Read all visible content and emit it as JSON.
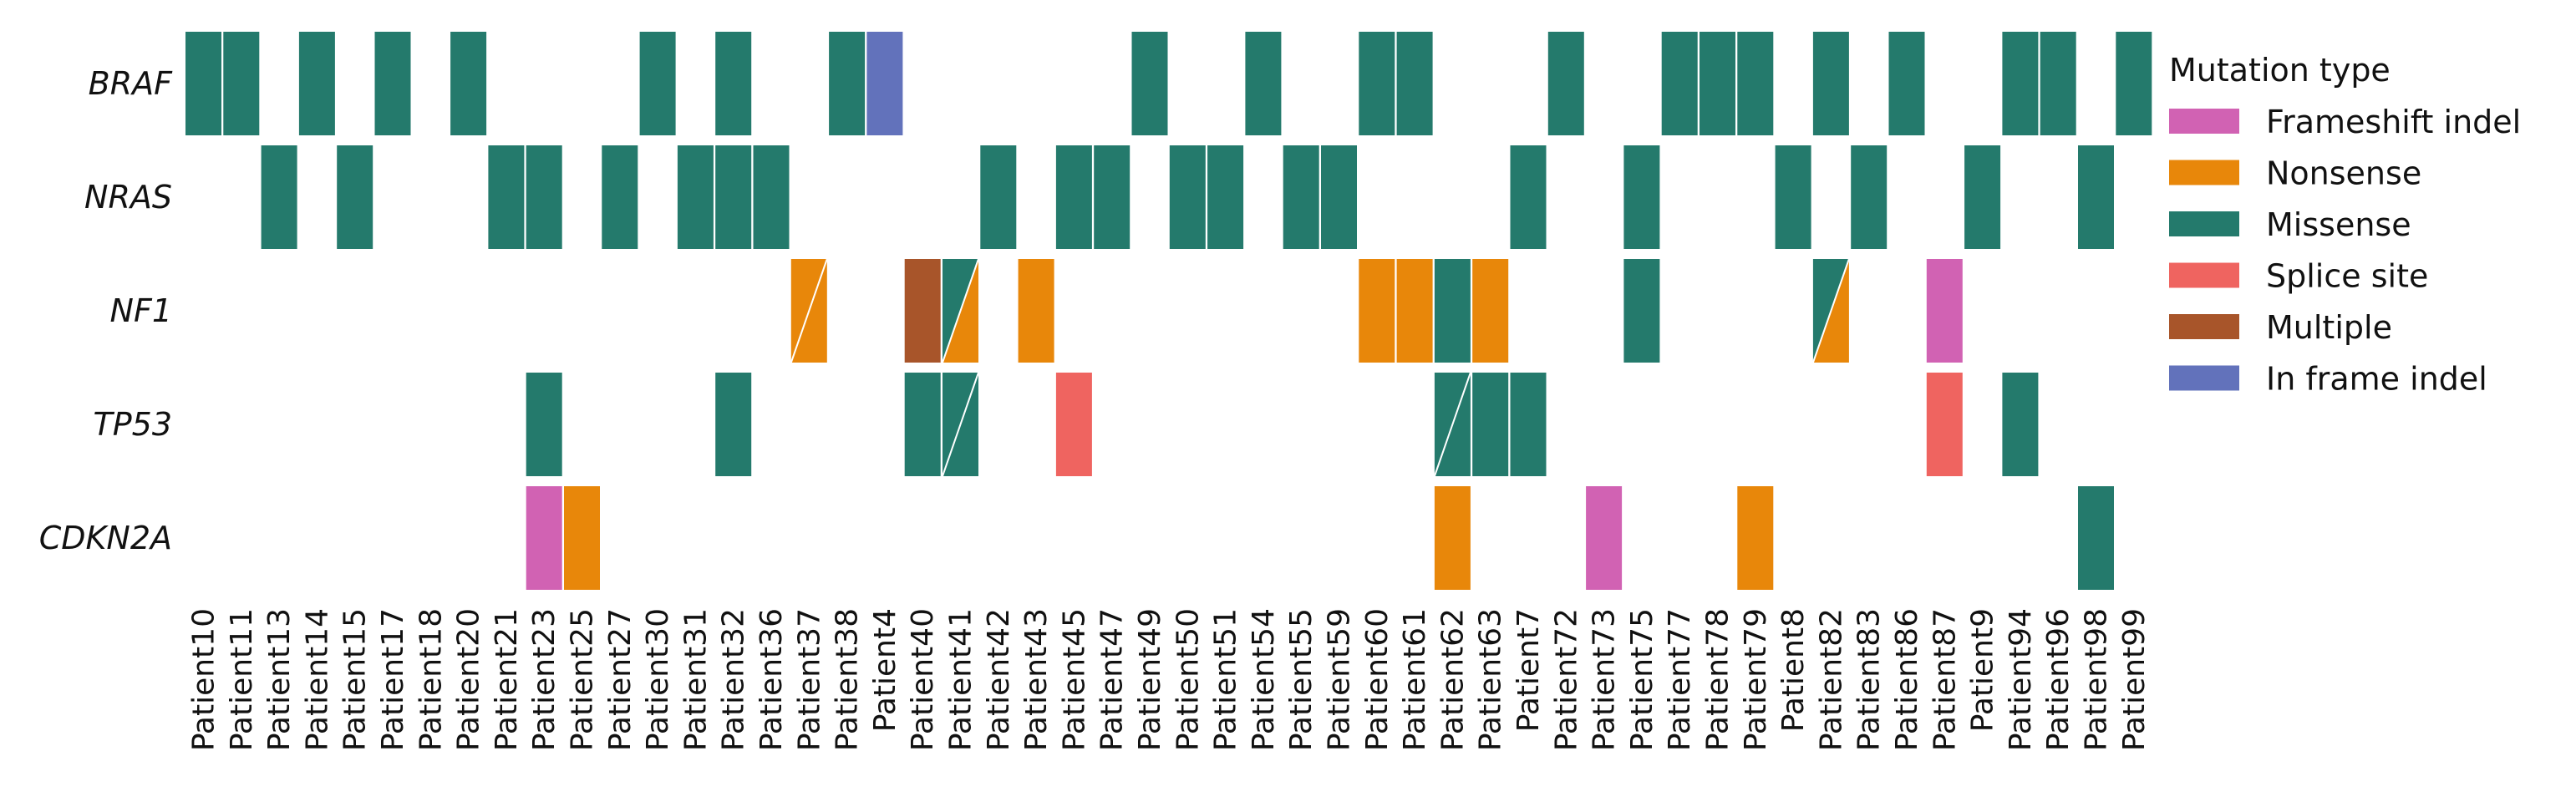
{
  "chart_data": {
    "type": "heatmap",
    "title": "",
    "genes": [
      "BRAF",
      "NRAS",
      "NF1",
      "TP53",
      "CDKN2A"
    ],
    "patients": [
      "Patient10",
      "Patient11",
      "Patient13",
      "Patient14",
      "Patient15",
      "Patient17",
      "Patient18",
      "Patient20",
      "Patient21",
      "Patient23",
      "Patient25",
      "Patient27",
      "Patient30",
      "Patient31",
      "Patient32",
      "Patient36",
      "Patient37",
      "Patient38",
      "Patient4",
      "Patient40",
      "Patient41",
      "Patient42",
      "Patient43",
      "Patient45",
      "Patient47",
      "Patient49",
      "Patient50",
      "Patient51",
      "Patient54",
      "Patient55",
      "Patient59",
      "Patient60",
      "Patient61",
      "Patient62",
      "Patient63",
      "Patient7",
      "Patient72",
      "Patient73",
      "Patient75",
      "Patient77",
      "Patient78",
      "Patient79",
      "Patient8",
      "Patient82",
      "Patient83",
      "Patient86",
      "Patient87",
      "Patient9",
      "Patient94",
      "Patient96",
      "Patient98",
      "Patient99"
    ],
    "mutation_types": [
      {
        "name": "Frameshift indel",
        "color": "#d162b3"
      },
      {
        "name": "Nonsense",
        "color": "#e8870a"
      },
      {
        "name": "Missense",
        "color": "#247a6c"
      },
      {
        "name": "Splice site",
        "color": "#ef6460"
      },
      {
        "name": "Multiple",
        "color": "#a8552a"
      },
      {
        "name": "In frame indel",
        "color": "#6272bb"
      }
    ],
    "legend_title": "Mutation type",
    "legend_position": "right",
    "mutations": [
      {
        "gene": "BRAF",
        "patient": "Patient10",
        "types": [
          "Missense"
        ]
      },
      {
        "gene": "BRAF",
        "patient": "Patient11",
        "types": [
          "Missense"
        ]
      },
      {
        "gene": "BRAF",
        "patient": "Patient14",
        "types": [
          "Missense"
        ]
      },
      {
        "gene": "BRAF",
        "patient": "Patient17",
        "types": [
          "Missense"
        ]
      },
      {
        "gene": "BRAF",
        "patient": "Patient20",
        "types": [
          "Missense"
        ]
      },
      {
        "gene": "BRAF",
        "patient": "Patient30",
        "types": [
          "Missense"
        ]
      },
      {
        "gene": "BRAF",
        "patient": "Patient32",
        "types": [
          "Missense"
        ]
      },
      {
        "gene": "BRAF",
        "patient": "Patient38",
        "types": [
          "Missense"
        ]
      },
      {
        "gene": "BRAF",
        "patient": "Patient4",
        "types": [
          "In frame indel"
        ]
      },
      {
        "gene": "BRAF",
        "patient": "Patient49",
        "types": [
          "Missense"
        ]
      },
      {
        "gene": "BRAF",
        "patient": "Patient54",
        "types": [
          "Missense"
        ]
      },
      {
        "gene": "BRAF",
        "patient": "Patient60",
        "types": [
          "Missense"
        ]
      },
      {
        "gene": "BRAF",
        "patient": "Patient61",
        "types": [
          "Missense"
        ]
      },
      {
        "gene": "BRAF",
        "patient": "Patient72",
        "types": [
          "Missense"
        ]
      },
      {
        "gene": "BRAF",
        "patient": "Patient77",
        "types": [
          "Missense"
        ]
      },
      {
        "gene": "BRAF",
        "patient": "Patient78",
        "types": [
          "Missense"
        ]
      },
      {
        "gene": "BRAF",
        "patient": "Patient79",
        "types": [
          "Missense"
        ]
      },
      {
        "gene": "BRAF",
        "patient": "Patient82",
        "types": [
          "Missense"
        ]
      },
      {
        "gene": "BRAF",
        "patient": "Patient86",
        "types": [
          "Missense"
        ]
      },
      {
        "gene": "BRAF",
        "patient": "Patient94",
        "types": [
          "Missense"
        ]
      },
      {
        "gene": "BRAF",
        "patient": "Patient96",
        "types": [
          "Missense"
        ]
      },
      {
        "gene": "BRAF",
        "patient": "Patient99",
        "types": [
          "Missense"
        ]
      },
      {
        "gene": "NRAS",
        "patient": "Patient13",
        "types": [
          "Missense"
        ]
      },
      {
        "gene": "NRAS",
        "patient": "Patient15",
        "types": [
          "Missense"
        ]
      },
      {
        "gene": "NRAS",
        "patient": "Patient21",
        "types": [
          "Missense"
        ]
      },
      {
        "gene": "NRAS",
        "patient": "Patient23",
        "types": [
          "Missense"
        ]
      },
      {
        "gene": "NRAS",
        "patient": "Patient27",
        "types": [
          "Missense"
        ]
      },
      {
        "gene": "NRAS",
        "patient": "Patient31",
        "types": [
          "Missense"
        ]
      },
      {
        "gene": "NRAS",
        "patient": "Patient32",
        "types": [
          "Missense"
        ]
      },
      {
        "gene": "NRAS",
        "patient": "Patient36",
        "types": [
          "Missense"
        ]
      },
      {
        "gene": "NRAS",
        "patient": "Patient42",
        "types": [
          "Missense"
        ]
      },
      {
        "gene": "NRAS",
        "patient": "Patient45",
        "types": [
          "Missense"
        ]
      },
      {
        "gene": "NRAS",
        "patient": "Patient47",
        "types": [
          "Missense"
        ]
      },
      {
        "gene": "NRAS",
        "patient": "Patient50",
        "types": [
          "Missense"
        ]
      },
      {
        "gene": "NRAS",
        "patient": "Patient51",
        "types": [
          "Missense"
        ]
      },
      {
        "gene": "NRAS",
        "patient": "Patient55",
        "types": [
          "Missense"
        ]
      },
      {
        "gene": "NRAS",
        "patient": "Patient59",
        "types": [
          "Missense"
        ]
      },
      {
        "gene": "NRAS",
        "patient": "Patient7",
        "types": [
          "Missense"
        ]
      },
      {
        "gene": "NRAS",
        "patient": "Patient75",
        "types": [
          "Missense"
        ]
      },
      {
        "gene": "NRAS",
        "patient": "Patient8",
        "types": [
          "Missense"
        ]
      },
      {
        "gene": "NRAS",
        "patient": "Patient83",
        "types": [
          "Missense"
        ]
      },
      {
        "gene": "NRAS",
        "patient": "Patient9",
        "types": [
          "Missense"
        ]
      },
      {
        "gene": "NRAS",
        "patient": "Patient98",
        "types": [
          "Missense"
        ]
      },
      {
        "gene": "NF1",
        "patient": "Patient37",
        "types": [
          "Nonsense",
          "Nonsense"
        ]
      },
      {
        "gene": "NF1",
        "patient": "Patient40",
        "types": [
          "Multiple"
        ]
      },
      {
        "gene": "NF1",
        "patient": "Patient41",
        "types": [
          "Missense",
          "Nonsense"
        ]
      },
      {
        "gene": "NF1",
        "patient": "Patient43",
        "types": [
          "Nonsense"
        ]
      },
      {
        "gene": "NF1",
        "patient": "Patient60",
        "types": [
          "Nonsense"
        ]
      },
      {
        "gene": "NF1",
        "patient": "Patient61",
        "types": [
          "Nonsense"
        ]
      },
      {
        "gene": "NF1",
        "patient": "Patient62",
        "types": [
          "Missense"
        ]
      },
      {
        "gene": "NF1",
        "patient": "Patient63",
        "types": [
          "Nonsense"
        ]
      },
      {
        "gene": "NF1",
        "patient": "Patient75",
        "types": [
          "Missense"
        ]
      },
      {
        "gene": "NF1",
        "patient": "Patient82",
        "types": [
          "Missense",
          "Nonsense"
        ]
      },
      {
        "gene": "NF1",
        "patient": "Patient87",
        "types": [
          "Frameshift indel"
        ]
      },
      {
        "gene": "TP53",
        "patient": "Patient23",
        "types": [
          "Missense"
        ]
      },
      {
        "gene": "TP53",
        "patient": "Patient32",
        "types": [
          "Missense"
        ]
      },
      {
        "gene": "TP53",
        "patient": "Patient40",
        "types": [
          "Missense"
        ]
      },
      {
        "gene": "TP53",
        "patient": "Patient41",
        "types": [
          "Missense",
          "Missense"
        ]
      },
      {
        "gene": "TP53",
        "patient": "Patient45",
        "types": [
          "Splice site"
        ]
      },
      {
        "gene": "TP53",
        "patient": "Patient62",
        "types": [
          "Missense",
          "Missense"
        ]
      },
      {
        "gene": "TP53",
        "patient": "Patient63",
        "types": [
          "Missense"
        ]
      },
      {
        "gene": "TP53",
        "patient": "Patient7",
        "types": [
          "Missense"
        ]
      },
      {
        "gene": "TP53",
        "patient": "Patient87",
        "types": [
          "Splice site"
        ]
      },
      {
        "gene": "TP53",
        "patient": "Patient94",
        "types": [
          "Missense"
        ]
      },
      {
        "gene": "CDKN2A",
        "patient": "Patient23",
        "types": [
          "Frameshift indel"
        ]
      },
      {
        "gene": "CDKN2A",
        "patient": "Patient25",
        "types": [
          "Nonsense"
        ]
      },
      {
        "gene": "CDKN2A",
        "patient": "Patient62",
        "types": [
          "Nonsense"
        ]
      },
      {
        "gene": "CDKN2A",
        "patient": "Patient73",
        "types": [
          "Frameshift indel"
        ]
      },
      {
        "gene": "CDKN2A",
        "patient": "Patient79",
        "types": [
          "Nonsense"
        ]
      },
      {
        "gene": "CDKN2A",
        "patient": "Patient98",
        "types": [
          "Missense"
        ]
      }
    ]
  }
}
